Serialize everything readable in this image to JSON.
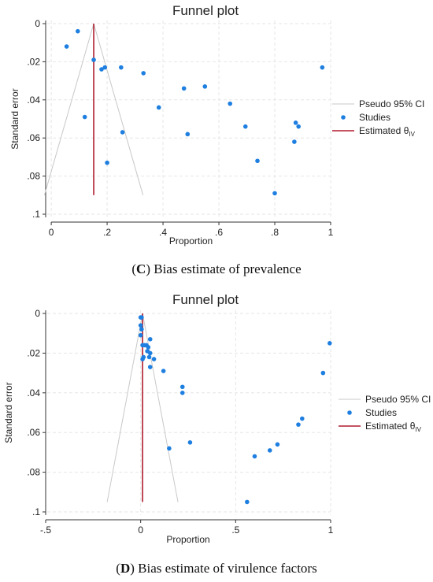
{
  "colors": {
    "studies": "#1e7fe0",
    "estimate": "#b01c2e",
    "pseudo_ci": "#c8c8c8",
    "grid": "#e6e6e6",
    "axis": "#333333"
  },
  "legend": {
    "pseudo_ci": "Pseudo 95% CI",
    "studies": "Studies",
    "estimate": "Estimated θ",
    "estimate_sub": "IV"
  },
  "captions": [
    {
      "letter": "C",
      "text": " Bias estimate of prevalence"
    },
    {
      "letter": "D",
      "text": " Bias estimate of virulence factors"
    }
  ],
  "chart_data": [
    {
      "type": "scatter",
      "title": "Funnel plot",
      "xlabel": "Proportion",
      "ylabel": "Standard error",
      "xlim": [
        -0.02,
        1.0
      ],
      "ylim": [
        0.1,
        0
      ],
      "y_reversed": true,
      "xticks": [
        0,
        0.2,
        0.4,
        0.6,
        0.8,
        1
      ],
      "xtick_labels": [
        "0",
        ".2",
        ".4",
        ".6",
        ".8",
        "1"
      ],
      "yticks": [
        0,
        0.02,
        0.04,
        0.06,
        0.08,
        0.1
      ],
      "ytick_labels": [
        "0",
        ".02",
        ".04",
        ".06",
        ".08",
        ".1"
      ],
      "grid": true,
      "legend_position": "right",
      "estimate": 0.152,
      "funnel_bottom_se": 0.09,
      "series": [
        {
          "name": "Studies",
          "points": [
            [
              0.095,
              0.004
            ],
            [
              0.055,
              0.012
            ],
            [
              0.152,
              0.019
            ],
            [
              0.18,
              0.024
            ],
            [
              0.192,
              0.023
            ],
            [
              0.25,
              0.023
            ],
            [
              0.33,
              0.026
            ],
            [
              0.12,
              0.049
            ],
            [
              0.255,
              0.057
            ],
            [
              0.2,
              0.073
            ],
            [
              0.385,
              0.044
            ],
            [
              0.475,
              0.034
            ],
            [
              0.55,
              0.033
            ],
            [
              0.488,
              0.058
            ],
            [
              0.64,
              0.042
            ],
            [
              0.695,
              0.054
            ],
            [
              0.738,
              0.072
            ],
            [
              0.8,
              0.089
            ],
            [
              0.875,
              0.052
            ],
            [
              0.885,
              0.054
            ],
            [
              0.87,
              0.062
            ],
            [
              0.97,
              0.023
            ]
          ]
        }
      ]
    },
    {
      "type": "scatter",
      "title": "Funnel plot",
      "xlabel": "Proportion",
      "ylabel": "Standard error",
      "xlim": [
        -0.5,
        1.0
      ],
      "ylim": [
        0.1,
        0
      ],
      "y_reversed": true,
      "xticks": [
        -0.5,
        0,
        0.5,
        1
      ],
      "xtick_labels": [
        "-.5",
        "0",
        ".5",
        "1"
      ],
      "yticks": [
        0,
        0.02,
        0.04,
        0.06,
        0.08,
        0.1
      ],
      "ytick_labels": [
        "0",
        ".02",
        ".04",
        ".06",
        ".08",
        ".1"
      ],
      "grid": true,
      "legend_position": "right",
      "estimate": 0.01,
      "funnel_bottom_se": 0.095,
      "series": [
        {
          "name": "Studies",
          "points": [
            [
              0.0,
              0.002
            ],
            [
              0.005,
              0.002
            ],
            [
              0.0,
              0.006
            ],
            [
              0.005,
              0.008
            ],
            [
              0.0,
              0.011
            ],
            [
              0.05,
              0.013
            ],
            [
              0.01,
              0.016
            ],
            [
              0.03,
              0.016
            ],
            [
              0.04,
              0.017
            ],
            [
              0.02,
              0.016
            ],
            [
              0.035,
              0.019
            ],
            [
              0.05,
              0.02
            ],
            [
              0.015,
              0.022
            ],
            [
              0.01,
              0.023
            ],
            [
              0.045,
              0.022
            ],
            [
              0.07,
              0.023
            ],
            [
              0.05,
              0.027
            ],
            [
              0.12,
              0.029
            ],
            [
              0.22,
              0.037
            ],
            [
              0.22,
              0.04
            ],
            [
              0.26,
              0.065
            ],
            [
              0.15,
              0.068
            ],
            [
              0.995,
              0.015
            ],
            [
              0.96,
              0.03
            ],
            [
              0.85,
              0.053
            ],
            [
              0.83,
              0.056
            ],
            [
              0.72,
              0.066
            ],
            [
              0.68,
              0.069
            ],
            [
              0.6,
              0.072
            ],
            [
              0.56,
              0.095
            ]
          ]
        }
      ]
    }
  ]
}
